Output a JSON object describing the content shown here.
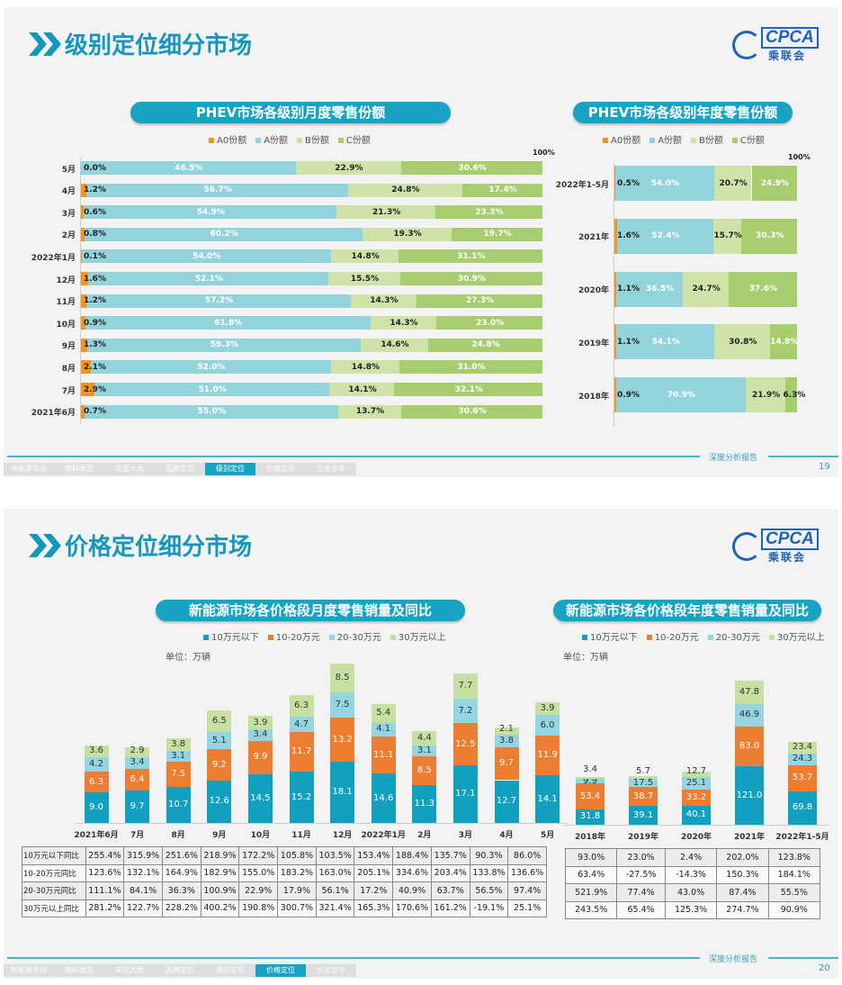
{
  "footer": {
    "report_label": "深度分析报告",
    "tabs": [
      "新能源市场",
      "燃料类型",
      "车型大类",
      "品牌定位",
      "级别定位",
      "价格定位",
      "企业竞争"
    ]
  },
  "logo": {
    "text": "CPCA",
    "cn": "乘联会"
  },
  "slide19": {
    "title": "级别定位细分市场",
    "page": "19",
    "active_tab": 4,
    "colors": {
      "A0": "#f7941d",
      "A": "#93d3dc",
      "B": "#cfe3a8",
      "C": "#a8cd6f"
    },
    "legend": [
      "A0份额",
      "A份额",
      "B份额",
      "C份额"
    ],
    "monthly": {
      "title": "PHEV市场各级别月度零售份额",
      "max_label": "100%",
      "rows": [
        {
          "label": "5月",
          "values": [
            "0.0%",
            "46.5%",
            "22.9%",
            "30.6%"
          ]
        },
        {
          "label": "4月",
          "values": [
            "1.2%",
            "56.7%",
            "24.8%",
            "17.4%"
          ]
        },
        {
          "label": "3月",
          "values": [
            "0.6%",
            "54.9%",
            "21.3%",
            "23.3%"
          ]
        },
        {
          "label": "2月",
          "values": [
            "0.8%",
            "60.2%",
            "19.3%",
            "19.7%"
          ]
        },
        {
          "label": "2022年1月",
          "values": [
            "0.1%",
            "54.0%",
            "14.8%",
            "31.1%"
          ]
        },
        {
          "label": "12月",
          "values": [
            "1.6%",
            "52.1%",
            "15.5%",
            "30.9%"
          ]
        },
        {
          "label": "11月",
          "values": [
            "1.2%",
            "57.2%",
            "14.3%",
            "27.3%"
          ]
        },
        {
          "label": "10月",
          "values": [
            "0.9%",
            "61.8%",
            "14.3%",
            "23.0%"
          ]
        },
        {
          "label": "9月",
          "values": [
            "1.3%",
            "59.3%",
            "14.6%",
            "24.8%"
          ]
        },
        {
          "label": "8月",
          "values": [
            "2.1%",
            "52.0%",
            "14.8%",
            "31.0%"
          ]
        },
        {
          "label": "7月",
          "values": [
            "2.9%",
            "51.0%",
            "14.1%",
            "32.1%"
          ]
        },
        {
          "label": "2021年6月",
          "values": [
            "0.7%",
            "55.0%",
            "13.7%",
            "30.6%"
          ]
        }
      ]
    },
    "annual": {
      "title": "PHEV市场各级别年度零售份额",
      "max_label": "100%",
      "rows": [
        {
          "label": "2022年1-5月",
          "values": [
            "0.5%",
            "54.0%",
            "20.7%",
            "24.9%"
          ]
        },
        {
          "label": "2021年",
          "values": [
            "1.6%",
            "52.4%",
            "15.7%",
            "30.3%"
          ]
        },
        {
          "label": "2020年",
          "values": [
            "1.1%",
            "36.5%",
            "24.7%",
            "37.6%"
          ]
        },
        {
          "label": "2019年",
          "values": [
            "1.1%",
            "54.1%",
            "30.8%",
            "14.8%"
          ]
        },
        {
          "label": "2018年",
          "values": [
            "0.9%",
            "70.9%",
            "21.9%",
            "6.3%"
          ]
        }
      ]
    }
  },
  "slide20": {
    "title": "价格定位细分市场",
    "page": "20",
    "active_tab": 5,
    "colors": {
      "s1": "#12a0c0",
      "s2": "#ed7d31",
      "s3": "#93d5e0",
      "s4": "#c6e0a1"
    },
    "legend": [
      "10万元以下",
      "10-20万元",
      "20-30万元",
      "30万元以上"
    ],
    "unit": "单位：万辆",
    "monthly": {
      "title": "新能源市场各价格段月度零售销量及同比",
      "categories": [
        "2021年6月",
        "7月",
        "8月",
        "9月",
        "10月",
        "11月",
        "12月",
        "2022年1月",
        "2月",
        "3月",
        "4月",
        "5月"
      ],
      "series": [
        [
          9.0,
          9.7,
          10.7,
          12.6,
          14.5,
          15.2,
          18.1,
          14.6,
          11.3,
          17.1,
          12.7,
          14.1
        ],
        [
          6.3,
          6.4,
          7.5,
          9.2,
          9.9,
          11.7,
          13.2,
          11.1,
          8.5,
          12.5,
          9.7,
          11.9
        ],
        [
          4.2,
          3.4,
          3.1,
          5.1,
          3.4,
          4.7,
          7.5,
          4.1,
          3.1,
          7.2,
          3.8,
          6.0
        ],
        [
          3.6,
          2.9,
          3.8,
          6.5,
          3.9,
          6.3,
          8.5,
          5.4,
          4.4,
          7.7,
          2.1,
          3.9
        ]
      ],
      "table": [
        {
          "label": "10万元以下同比",
          "values": [
            "255.4%",
            "315.9%",
            "251.6%",
            "218.9%",
            "172.2%",
            "105.8%",
            "103.5%",
            "153.4%",
            "188.4%",
            "135.7%",
            "90.3%",
            "86.0%"
          ]
        },
        {
          "label": "10-20万元同比",
          "values": [
            "123.6%",
            "132.1%",
            "164.9%",
            "182.9%",
            "155.0%",
            "183.2%",
            "163.0%",
            "205.1%",
            "334.6%",
            "203.4%",
            "133.8%",
            "136.6%"
          ]
        },
        {
          "label": "20-30万元同比",
          "values": [
            "111.1%",
            "84.1%",
            "36.3%",
            "100.9%",
            "22.9%",
            "17.9%",
            "56.1%",
            "17.2%",
            "40.9%",
            "63.7%",
            "56.5%",
            "97.4%"
          ]
        },
        {
          "label": "30万元以上同比",
          "values": [
            "281.2%",
            "122.7%",
            "228.2%",
            "400.2%",
            "190.8%",
            "300.7%",
            "321.4%",
            "165.3%",
            "170.6%",
            "161.2%",
            "-19.1%",
            "25.1%"
          ]
        }
      ]
    },
    "annual": {
      "title": "新能源市场各价格段年度零售销量及同比",
      "categories": [
        "2018年",
        "2019年",
        "2020年",
        "2021年",
        "2022年1-5月"
      ],
      "series": [
        [
          31.8,
          39.1,
          40.1,
          121.0,
          69.8
        ],
        [
          53.4,
          38.7,
          33.2,
          83.0,
          53.7
        ],
        [
          9.9,
          17.5,
          25.1,
          46.9,
          24.3
        ],
        [
          3.4,
          5.7,
          12.7,
          47.8,
          23.4
        ]
      ],
      "table": [
        [
          "93.0%",
          "23.0%",
          "2.4%",
          "202.0%",
          "123.8%"
        ],
        [
          "63.4%",
          "-27.5%",
          "-14.3%",
          "150.3%",
          "184.1%"
        ],
        [
          "521.9%",
          "77.4%",
          "43.0%",
          "87.4%",
          "55.5%"
        ],
        [
          "243.5%",
          "65.4%",
          "125.3%",
          "274.7%",
          "90.9%"
        ]
      ]
    }
  }
}
